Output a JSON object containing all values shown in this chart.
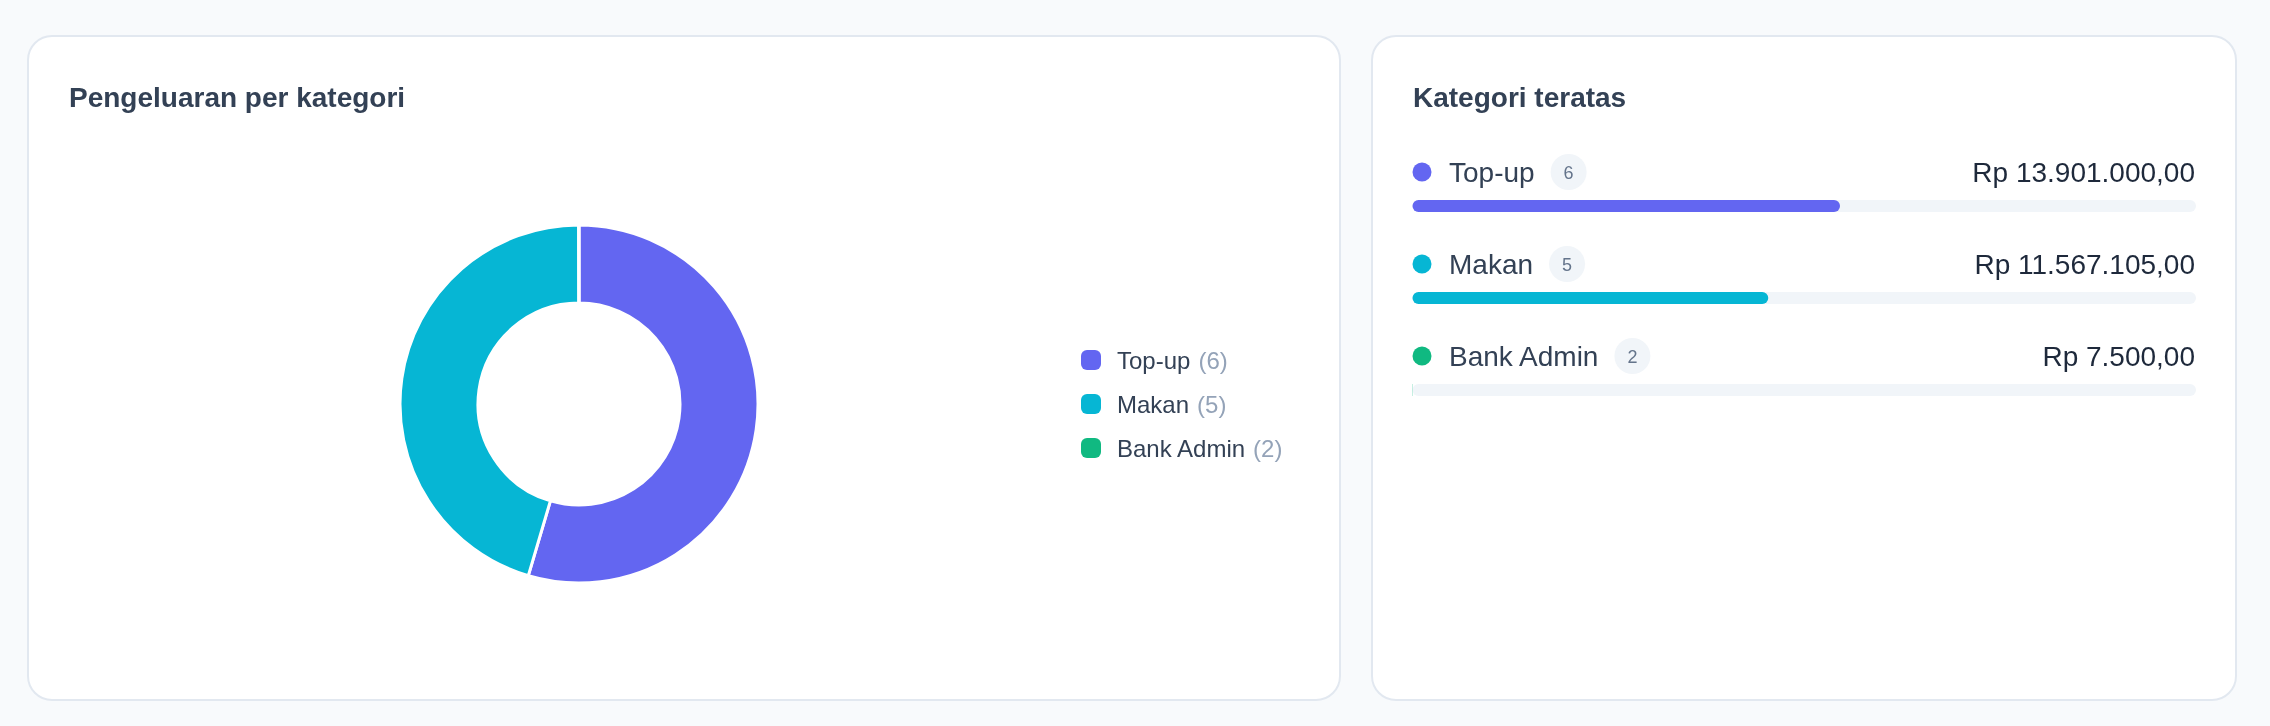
{
  "chart_data": [
    {
      "type": "donut",
      "title": "Pengeluaran per kategori",
      "categories": [
        "Top-up",
        "Makan",
        "Bank Admin"
      ],
      "values": [
        54.57,
        45.4,
        0.03
      ],
      "colors": [
        "#6366f1",
        "#06b6d4",
        "#10b981"
      ],
      "legend": "right",
      "annotations": [
        {
          "text": "(6)",
          "x": "Top-up"
        },
        {
          "text": "(5)",
          "x": "Makan"
        },
        {
          "text": "(2)",
          "x": "Bank Admin"
        }
      ]
    },
    {
      "type": "bar",
      "orientation": "horizontal",
      "title": "Kategori teratas",
      "categories": [
        "Top-up",
        "Makan",
        "Bank Admin"
      ],
      "values": [
        13901000,
        11567105,
        7500
      ],
      "colors": [
        "#6366f1",
        "#06b6d4",
        "#10b981"
      ],
      "value_labels": [
        "Rp 13.901.000,00",
        "Rp 11.567.105,00",
        "Rp 7.500,00"
      ],
      "xlim": [
        0,
        25475605
      ],
      "bands": [
        {
          "axis": "x",
          "from": 0,
          "to": 25475605,
          "color": "#f1f5f9"
        }
      ],
      "tick_labels": "y",
      "annotations": [
        {
          "text": "6",
          "y": "Top-up"
        },
        {
          "text": "5",
          "y": "Makan"
        },
        {
          "text": "2",
          "y": "Bank Admin"
        }
      ]
    }
  ]
}
